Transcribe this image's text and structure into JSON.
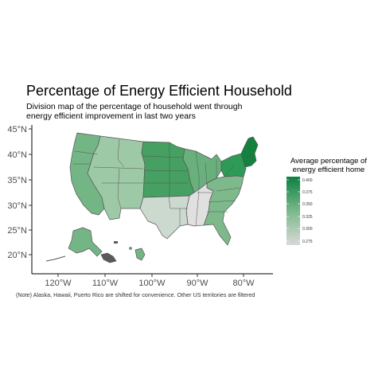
{
  "title": "Percentage of Energy Efficient Household",
  "subtitle": "Division map of the percentage of household went through energy efficient improvement in last two years",
  "caption": "(Note) Alaska, Hawaii, Puerto Rico are shifted for convenience. Other US territories are filtered",
  "axes": {
    "x_ticks": [
      "120°W",
      "110°W",
      "100°W",
      "90°W",
      "80°W"
    ],
    "y_ticks": [
      "45°N",
      "40°N",
      "35°N",
      "30°N",
      "25°N",
      "20°N"
    ]
  },
  "legend": {
    "title_line1": "Average percentage of",
    "title_line2": "energy efficient home",
    "ticks": [
      "0.400",
      "0.375",
      "0.350",
      "0.325",
      "0.300",
      "0.275"
    ],
    "color_low": "#d9d9d9",
    "color_high": "#0c8040"
  },
  "divisions": [
    {
      "name": "New England",
      "value": 0.405,
      "color": "#12833f"
    },
    {
      "name": "Middle Atlantic",
      "value": 0.385,
      "color": "#2e9a57"
    },
    {
      "name": "West North Central",
      "value": 0.37,
      "color": "#45a062"
    },
    {
      "name": "East North Central",
      "value": 0.35,
      "color": "#6ab07d"
    },
    {
      "name": "South Atlantic",
      "value": 0.34,
      "color": "#7eb98c"
    },
    {
      "name": "Pacific",
      "value": 0.345,
      "color": "#74b585"
    },
    {
      "name": "Mountain",
      "value": 0.32,
      "color": "#9ec9a6"
    },
    {
      "name": "West South Central",
      "value": 0.295,
      "color": "#ccd9cf"
    },
    {
      "name": "East South Central",
      "value": 0.275,
      "color": "#e0e0e0"
    }
  ]
}
